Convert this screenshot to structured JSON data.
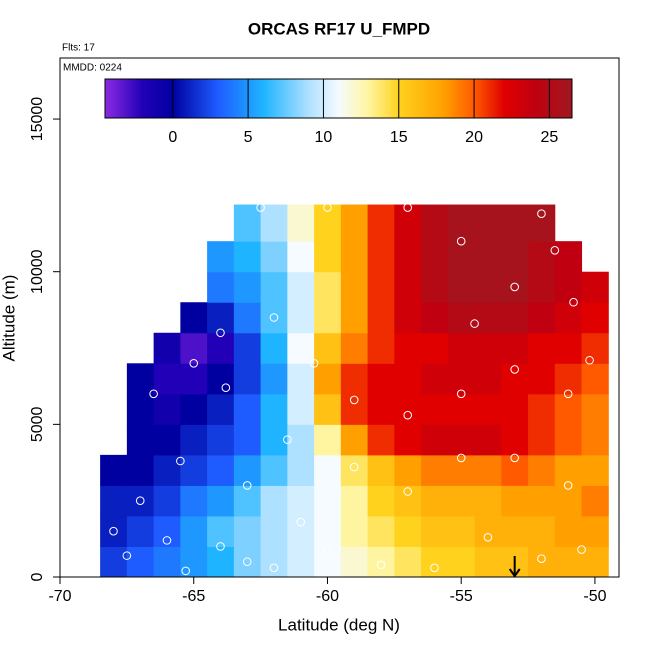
{
  "chart_data": {
    "type": "heatmap",
    "title": "ORCAS RF17 U_FMPD",
    "subtitle": "Flts: 17",
    "annotation": "MMDD: 0224",
    "xlabel": "Latitude (deg N)",
    "ylabel": "Altitude (m)",
    "xlim": [
      -70,
      -49.1
    ],
    "xticks": [
      -70,
      -65,
      -60,
      -55,
      -50
    ],
    "ylim": [
      0,
      17000
    ],
    "yticks": [
      0,
      5000,
      10000,
      15000
    ],
    "x_edges": [
      -68.5,
      -67.5,
      -66.5,
      -65.5,
      -64.5,
      -63.5,
      -62.5,
      -61.5,
      -60.5,
      -59.5,
      -58.5,
      -57.5,
      -56.5,
      -55.5,
      -54.5,
      -53.5,
      -52.5,
      -51.5,
      -50.5,
      -49.5
    ],
    "y_edges": [
      0,
      1000,
      2000,
      3000,
      4000,
      5000,
      6000,
      7000,
      8000,
      9000,
      10000,
      11000,
      12200
    ],
    "values": [
      [
        2,
        3,
        4,
        5,
        6,
        8,
        9,
        10,
        11,
        12,
        13,
        14,
        15,
        15,
        16,
        16,
        17,
        17,
        17
      ],
      [
        1,
        2,
        3,
        5,
        7,
        8,
        9,
        10,
        11,
        13,
        14,
        15,
        16,
        16,
        17,
        17,
        17,
        18,
        18
      ],
      [
        1,
        1,
        2,
        4,
        5,
        7,
        9,
        10,
        11,
        13,
        15,
        16,
        17,
        17,
        17,
        18,
        18,
        18,
        19
      ],
      [
        0,
        0,
        1,
        2,
        3,
        5,
        7,
        9,
        11,
        14,
        16,
        18,
        19,
        19,
        19,
        20,
        19,
        18,
        18
      ],
      [
        null,
        0,
        0,
        1,
        2,
        3,
        6,
        9,
        13,
        18,
        21,
        22,
        23,
        23,
        23,
        22,
        21,
        20,
        19
      ],
      [
        null,
        0,
        -1,
        0,
        1,
        3,
        6,
        10,
        16,
        21,
        22,
        22,
        22,
        22,
        22,
        22,
        21,
        20,
        19
      ],
      [
        null,
        0,
        -2,
        -2,
        0,
        2,
        5,
        10,
        18,
        21,
        22,
        22,
        23,
        23,
        23,
        22,
        22,
        21,
        20
      ],
      [
        null,
        null,
        -1,
        -3,
        -2,
        2,
        6,
        11,
        16,
        19,
        21,
        22,
        22,
        23,
        23,
        23,
        22,
        22,
        21
      ],
      [
        null,
        null,
        null,
        0,
        1,
        4,
        7,
        10,
        14,
        18,
        21,
        23,
        24,
        25,
        25,
        25,
        24,
        23,
        22
      ],
      [
        null,
        null,
        null,
        null,
        4,
        5,
        7,
        10,
        14,
        18,
        21,
        23,
        25,
        26,
        26,
        26,
        25,
        24,
        23
      ],
      [
        null,
        null,
        null,
        null,
        5,
        6,
        8,
        11,
        15,
        18,
        21,
        23,
        25,
        26,
        26,
        26,
        25,
        24,
        null
      ],
      [
        null,
        null,
        null,
        null,
        null,
        7,
        9,
        12,
        15,
        18,
        21,
        23,
        25,
        26,
        26,
        26,
        26,
        null,
        null
      ]
    ],
    "colorbar_lim": [
      -4.5,
      26.5
    ],
    "colorbar_ticks": [
      0,
      5,
      10,
      15,
      20,
      25
    ],
    "colorscale": [
      [
        -4.5,
        "#8a2be2"
      ],
      [
        -2,
        "#2200b8"
      ],
      [
        0,
        "#0000a0"
      ],
      [
        3,
        "#1e5cff"
      ],
      [
        6,
        "#1eb4ff"
      ],
      [
        9,
        "#aee0ff"
      ],
      [
        11,
        "#f5fbff"
      ],
      [
        13,
        "#fff5a0"
      ],
      [
        15,
        "#ffd21e"
      ],
      [
        18,
        "#ffa000"
      ],
      [
        20,
        "#ff5a00"
      ],
      [
        22,
        "#e00000"
      ],
      [
        24,
        "#c00010"
      ],
      [
        26.5,
        "#a01820"
      ]
    ],
    "points": {
      "color": "#ffffff",
      "x": [
        -68,
        -67.5,
        -66,
        -65.3,
        -64,
        -63,
        -62,
        -61,
        -60,
        -58,
        -56,
        -54,
        -52,
        -50.5,
        -67,
        -65.5,
        -63,
        -61.5,
        -59,
        -57,
        -55,
        -53,
        -51,
        -66.5,
        -65,
        -64,
        -63.8,
        -62,
        -60.5,
        -59,
        -57,
        -55,
        -53,
        -51,
        -50.2,
        -62.5,
        -60,
        -57,
        -55,
        -52,
        -51.5,
        -53,
        -50.8,
        -54.5
      ],
      "y": [
        1500,
        700,
        1200,
        200,
        1000,
        500,
        300,
        1800,
        900,
        400,
        300,
        1300,
        600,
        900,
        2500,
        3800,
        3000,
        4500,
        3600,
        2800,
        3900,
        3900,
        3000,
        6000,
        7000,
        8000,
        6200,
        8500,
        7000,
        5800,
        5300,
        6000,
        6800,
        6000,
        7100,
        12100,
        12100,
        12100,
        11000,
        11900,
        10700,
        9500,
        9000,
        8300
      ]
    },
    "arrow_x": -53
  }
}
